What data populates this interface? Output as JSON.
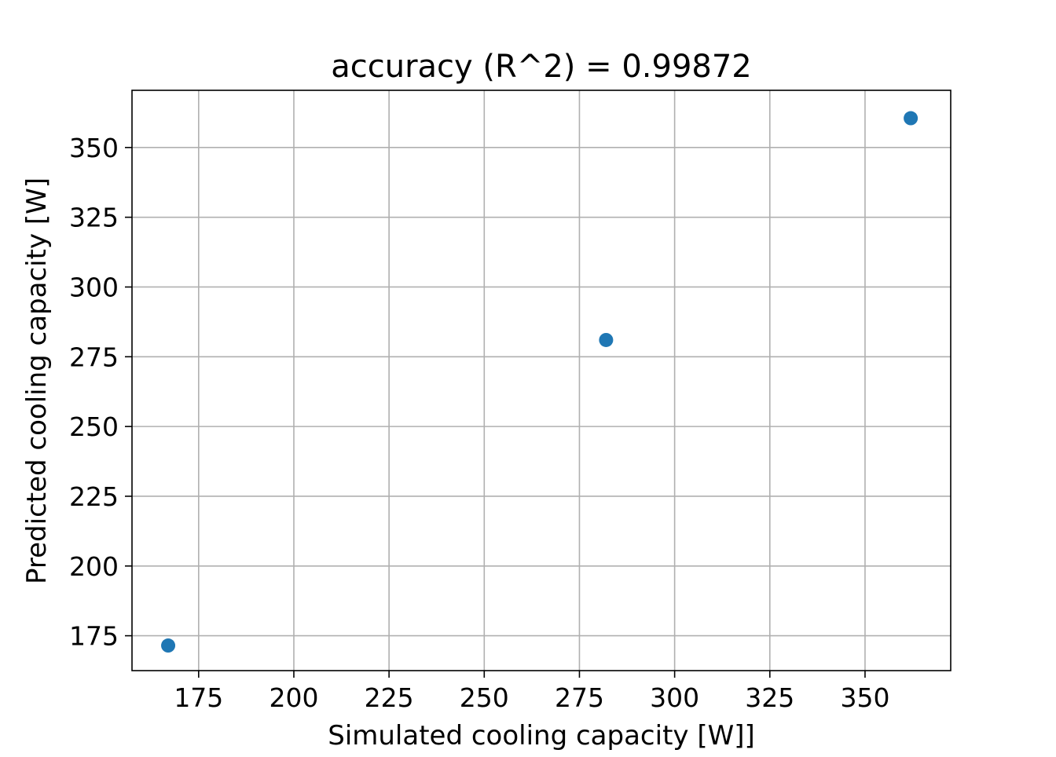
{
  "chart_data": {
    "type": "scatter",
    "title": "accuracy (R^2) =  0.99872",
    "xlabel": "Simulated cooling capacity [W]]",
    "ylabel": "Predicted cooling capacity [W]",
    "xlim": [
      157.5,
      372.5
    ],
    "ylim": [
      162.5,
      370.5
    ],
    "xticks": [
      175,
      200,
      225,
      250,
      275,
      300,
      325,
      350
    ],
    "yticks": [
      175,
      200,
      225,
      250,
      275,
      300,
      325,
      350
    ],
    "grid": true,
    "series": [
      {
        "color": "#1f77b4",
        "points": [
          {
            "x": 167.0,
            "y": 171.5
          },
          {
            "x": 282.0,
            "y": 281.0
          },
          {
            "x": 362.0,
            "y": 360.5
          }
        ]
      }
    ]
  }
}
